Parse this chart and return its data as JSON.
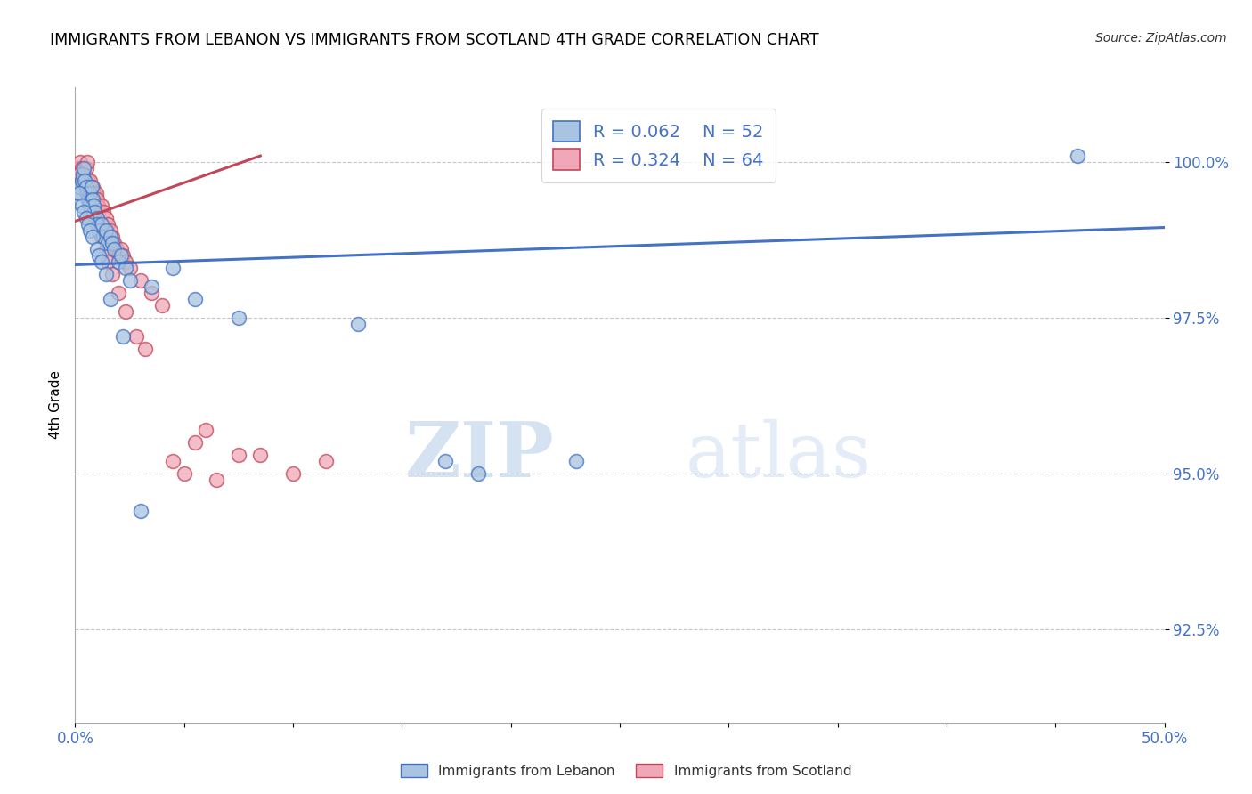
{
  "title": "IMMIGRANTS FROM LEBANON VS IMMIGRANTS FROM SCOTLAND 4TH GRADE CORRELATION CHART",
  "source": "Source: ZipAtlas.com",
  "ylabel": "4th Grade",
  "yticks": [
    92.5,
    95.0,
    97.5,
    100.0
  ],
  "ytick_labels": [
    "92.5%",
    "95.0%",
    "97.5%",
    "100.0%"
  ],
  "xlim": [
    0.0,
    50.0
  ],
  "ylim": [
    91.0,
    101.2
  ],
  "legend_blue_r": "R = 0.062",
  "legend_blue_n": "N = 52",
  "legend_pink_r": "R = 0.324",
  "legend_pink_n": "N = 64",
  "blue_color": "#a8c4e0",
  "pink_color": "#f0a8b8",
  "blue_line_color": "#4472c4",
  "pink_line_color": "#c0485a",
  "legend_text_color": "#4472c4",
  "blue_scatter_x": [
    0.15,
    0.2,
    0.3,
    0.35,
    0.4,
    0.45,
    0.5,
    0.55,
    0.6,
    0.65,
    0.7,
    0.75,
    0.8,
    0.85,
    0.9,
    1.0,
    1.0,
    1.1,
    1.2,
    1.3,
    1.4,
    1.5,
    1.6,
    1.7,
    1.8,
    2.0,
    2.1,
    2.3,
    2.5,
    3.5,
    4.5,
    5.5,
    7.5,
    13.0,
    17.0,
    18.5,
    23.0,
    46.0,
    0.2,
    0.3,
    0.4,
    0.5,
    0.6,
    0.7,
    0.8,
    1.0,
    1.1,
    1.2,
    1.4,
    1.6,
    2.2,
    3.0
  ],
  "blue_scatter_y": [
    99.5,
    99.6,
    99.7,
    99.8,
    99.9,
    99.7,
    99.6,
    99.5,
    99.4,
    99.3,
    99.5,
    99.6,
    99.4,
    99.3,
    99.2,
    99.1,
    99.0,
    98.9,
    99.0,
    98.8,
    98.9,
    98.7,
    98.8,
    98.7,
    98.6,
    98.4,
    98.5,
    98.3,
    98.1,
    98.0,
    98.3,
    97.8,
    97.5,
    97.4,
    95.2,
    95.0,
    95.2,
    100.1,
    99.5,
    99.3,
    99.2,
    99.1,
    99.0,
    98.9,
    98.8,
    98.6,
    98.5,
    98.4,
    98.2,
    97.8,
    97.2,
    94.4
  ],
  "pink_scatter_x": [
    0.1,
    0.15,
    0.2,
    0.25,
    0.3,
    0.35,
    0.4,
    0.45,
    0.5,
    0.55,
    0.6,
    0.65,
    0.7,
    0.75,
    0.8,
    0.85,
    0.9,
    0.95,
    1.0,
    1.05,
    1.1,
    1.2,
    1.3,
    1.4,
    1.5,
    1.6,
    1.7,
    1.8,
    1.9,
    2.0,
    2.1,
    2.2,
    2.3,
    2.5,
    3.0,
    3.5,
    4.0,
    0.2,
    0.3,
    0.4,
    0.5,
    0.6,
    0.7,
    0.8,
    0.9,
    1.0,
    1.1,
    1.2,
    1.4,
    1.5,
    1.7,
    2.0,
    2.3,
    2.8,
    3.2,
    4.5,
    5.0,
    6.5,
    7.5,
    5.5,
    6.0,
    8.5,
    10.0,
    11.5
  ],
  "pink_scatter_y": [
    99.9,
    99.8,
    99.9,
    100.0,
    99.9,
    99.8,
    99.7,
    99.8,
    99.9,
    100.0,
    99.7,
    99.6,
    99.7,
    99.5,
    99.6,
    99.5,
    99.4,
    99.5,
    99.4,
    99.3,
    99.2,
    99.3,
    99.2,
    99.1,
    99.0,
    98.9,
    98.8,
    98.7,
    98.6,
    98.5,
    98.6,
    98.5,
    98.4,
    98.3,
    98.1,
    97.9,
    97.7,
    99.8,
    99.7,
    99.6,
    99.5,
    99.4,
    99.3,
    99.2,
    99.1,
    99.0,
    98.9,
    98.8,
    98.6,
    98.4,
    98.2,
    97.9,
    97.6,
    97.2,
    97.0,
    95.2,
    95.0,
    94.9,
    95.3,
    95.5,
    95.7,
    95.3,
    95.0,
    95.2
  ],
  "watermark_zip": "ZIP",
  "watermark_atlas": "atlas",
  "blue_trend_x": [
    0.0,
    50.0
  ],
  "blue_trend_y": [
    98.35,
    98.95
  ],
  "pink_trend_x": [
    0.0,
    8.5
  ],
  "pink_trend_y": [
    99.05,
    100.1
  ]
}
